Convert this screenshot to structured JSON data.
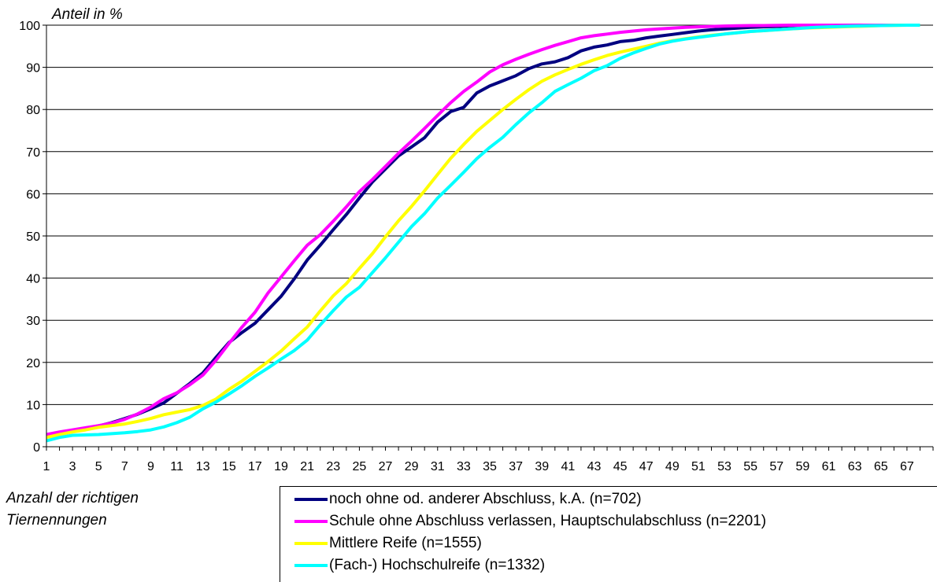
{
  "chart_data": {
    "type": "line",
    "title": "",
    "ylabel": "Anteil in %",
    "xlabel": "Anzahl der richtigen Tiernennungen",
    "ylim": [
      0,
      100
    ],
    "yticks": [
      0,
      10,
      20,
      30,
      40,
      50,
      60,
      70,
      80,
      90,
      100
    ],
    "xticks": [
      "1",
      "3",
      "5",
      "7",
      "9",
      "11",
      "13",
      "15",
      "17",
      "19",
      "21",
      "23",
      "25",
      "27",
      "29",
      "31",
      "33",
      "35",
      "37",
      "39",
      "41",
      "43",
      "45",
      "47",
      "49",
      "51",
      "53",
      "55",
      "57",
      "59",
      "61",
      "63",
      "65",
      "67"
    ],
    "grid": "horizontal",
    "legend_position": "bottom-right",
    "x": [
      1,
      2,
      3,
      4,
      5,
      6,
      7,
      8,
      9,
      10,
      11,
      12,
      13,
      14,
      15,
      16,
      17,
      18,
      19,
      20,
      21,
      22,
      23,
      24,
      25,
      26,
      27,
      28,
      29,
      30,
      31,
      32,
      33,
      34,
      35,
      36,
      37,
      38,
      39,
      40,
      41,
      42,
      43,
      44,
      45,
      46,
      47,
      48,
      49,
      50,
      51,
      52,
      53,
      54,
      55,
      56,
      57,
      58,
      59,
      60,
      61,
      62,
      63,
      64,
      65,
      66,
      67,
      68
    ],
    "series": [
      {
        "name": "noch ohne od. anderer Abschluss, k.A. (n=702)",
        "color": "#000080",
        "values": [
          2.8,
          3.3,
          3.8,
          4.3,
          4.9,
          5.7,
          6.7,
          7.7,
          9,
          10.4,
          12.7,
          15,
          17.5,
          21.2,
          24.7,
          27.1,
          29.3,
          32.5,
          35.7,
          39.8,
          44.3,
          47.8,
          51.5,
          55.1,
          59,
          62.8,
          65.9,
          69,
          71.1,
          73.3,
          77,
          79.5,
          80.5,
          83.9,
          85.6,
          86.8,
          88,
          89.7,
          90.8,
          91.3,
          92.3,
          93.9,
          94.8,
          95.3,
          96.1,
          96.4,
          97,
          97.4,
          97.8,
          98.2,
          98.6,
          98.9,
          99.1,
          99.3,
          99.5,
          99.6,
          99.7,
          99.8,
          99.85,
          99.9,
          99.9,
          99.95,
          100,
          100,
          100,
          100,
          100,
          100
        ]
      },
      {
        "name": "Schule ohne Abschluss verlassen, Hauptschulabschluss (n=2201)",
        "color": "#FF00FF",
        "values": [
          2.9,
          3.5,
          4,
          4.5,
          5,
          5.6,
          6.5,
          7.8,
          9.4,
          11.4,
          12.8,
          14.7,
          17,
          20.5,
          24.5,
          28.4,
          31.9,
          36.5,
          40.3,
          44.1,
          47.8,
          50.3,
          53.5,
          56.9,
          60.5,
          63.4,
          66.5,
          69.6,
          72.5,
          75.5,
          78.6,
          81.6,
          84.3,
          86.5,
          88.9,
          90.6,
          91.9,
          93.1,
          94.2,
          95.2,
          96.1,
          97,
          97.5,
          97.9,
          98.3,
          98.6,
          98.9,
          99.1,
          99.3,
          99.5,
          99.6,
          99.7,
          99.8,
          99.85,
          99.9,
          99.9,
          99.95,
          100,
          100,
          100,
          100,
          100,
          100,
          100,
          100,
          100,
          100,
          100
        ]
      },
      {
        "name": "Mittlere Reife (n=1555)",
        "color": "#FFFF00",
        "values": [
          2.2,
          2.9,
          3.5,
          4,
          4.6,
          5,
          5.4,
          6,
          6.7,
          7.6,
          8.2,
          8.8,
          9.8,
          11.3,
          13.6,
          15.6,
          17.9,
          20.2,
          22.7,
          25.6,
          28.4,
          32.2,
          35.8,
          38.7,
          42.3,
          45.8,
          49.8,
          53.6,
          57,
          60.7,
          64.6,
          68.4,
          71.7,
          74.8,
          77.4,
          80,
          82.4,
          84.7,
          86.7,
          88.2,
          89.5,
          90.7,
          91.8,
          92.8,
          93.6,
          94.3,
          95,
          95.7,
          96.3,
          96.8,
          97.2,
          97.6,
          97.9,
          98.2,
          98.5,
          98.7,
          98.9,
          99.1,
          99.3,
          99.4,
          99.5,
          99.6,
          99.7,
          99.8,
          99.9,
          99.95,
          100,
          100
        ]
      },
      {
        "name": "(Fach-) Hochschulreife (n=1332)",
        "color": "#00FFFF",
        "values": [
          1.4,
          2.2,
          2.7,
          2.8,
          2.9,
          3.1,
          3.3,
          3.6,
          4,
          4.7,
          5.7,
          7,
          9,
          10.6,
          12.5,
          14.5,
          16.7,
          18.7,
          20.8,
          22.8,
          25.3,
          28.9,
          32.3,
          35.5,
          37.8,
          41.3,
          44.8,
          48.5,
          52.2,
          55.3,
          59,
          62,
          65.1,
          68.3,
          71,
          73.4,
          76.4,
          79.2,
          81.6,
          84.3,
          85.9,
          87.4,
          89.2,
          90.4,
          92.1,
          93.4,
          94.5,
          95.5,
          96.2,
          96.7,
          97.1,
          97.5,
          97.9,
          98.2,
          98.5,
          98.7,
          98.9,
          99.1,
          99.3,
          99.5,
          99.6,
          99.7,
          99.8,
          99.85,
          99.9,
          99.95,
          100,
          100
        ]
      }
    ]
  }
}
